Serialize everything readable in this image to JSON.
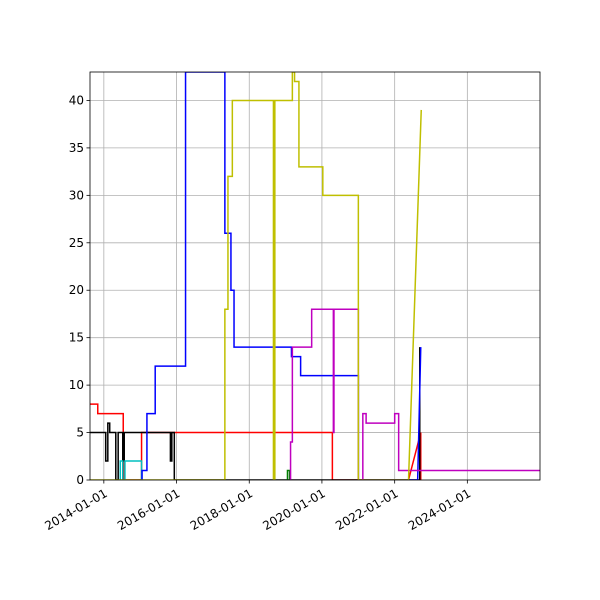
{
  "chart_data": {
    "type": "line",
    "title": "",
    "xlabel": "",
    "ylabel": "",
    "xlim": [
      "2013-08-15",
      "2025-12-31"
    ],
    "ylim": [
      0,
      43
    ],
    "grid": true,
    "x_ticks": [
      "2014-01-01",
      "2016-01-01",
      "2018-01-01",
      "2020-01-01",
      "2022-01-01",
      "2024-01-01"
    ],
    "y_ticks": [
      0,
      5,
      10,
      15,
      20,
      25,
      30,
      35,
      40
    ],
    "series": [
      {
        "color": "#ff0000",
        "points": [
          [
            "2013-08-15",
            8
          ],
          [
            "2013-11-01",
            8
          ],
          [
            "2013-11-01",
            7
          ],
          [
            "2014-07-15",
            7
          ],
          [
            "2014-07-15",
            2
          ],
          [
            "2014-07-25",
            2
          ],
          [
            "2014-07-25",
            0
          ],
          [
            "2015-01-15",
            0
          ],
          [
            "2015-01-15",
            5
          ],
          [
            "2020-04-15",
            5
          ],
          [
            "2020-04-15",
            0
          ],
          [
            "2022-05-20",
            0
          ],
          [
            "2022-09-20",
            5
          ],
          [
            "2022-09-20",
            0
          ]
        ]
      },
      {
        "color": "#000000",
        "points": [
          [
            "2013-08-15",
            5
          ],
          [
            "2014-01-20",
            5
          ],
          [
            "2014-01-20",
            2
          ],
          [
            "2014-02-10",
            2
          ],
          [
            "2014-02-10",
            6
          ],
          [
            "2014-03-01",
            6
          ],
          [
            "2014-03-01",
            5
          ],
          [
            "2014-05-01",
            5
          ],
          [
            "2014-05-01",
            0
          ],
          [
            "2014-05-25",
            0
          ],
          [
            "2014-05-25",
            5
          ],
          [
            "2014-07-10",
            5
          ],
          [
            "2014-07-10",
            2
          ],
          [
            "2014-07-25",
            2
          ],
          [
            "2014-07-25",
            5
          ],
          [
            "2015-11-01",
            5
          ],
          [
            "2015-11-01",
            2
          ],
          [
            "2015-11-15",
            2
          ],
          [
            "2015-11-15",
            5
          ],
          [
            "2015-12-10",
            5
          ],
          [
            "2015-12-10",
            0
          ],
          [
            "2022-09-10",
            0
          ],
          [
            "2022-09-10",
            14
          ]
        ]
      },
      {
        "color": "#00bfbf",
        "points": [
          [
            "2014-06-15",
            0
          ],
          [
            "2014-06-15",
            2
          ],
          [
            "2014-07-10",
            2
          ],
          [
            "2014-07-10",
            0
          ],
          [
            "2014-08-01",
            0
          ],
          [
            "2014-08-01",
            2
          ],
          [
            "2015-01-15",
            2
          ],
          [
            "2015-01-15",
            0
          ]
        ]
      },
      {
        "color": "#0000ff",
        "points": [
          [
            "2015-01-20",
            0
          ],
          [
            "2015-01-20",
            1
          ],
          [
            "2015-03-10",
            1
          ],
          [
            "2015-03-10",
            7
          ],
          [
            "2015-06-01",
            7
          ],
          [
            "2015-06-01",
            12
          ],
          [
            "2016-04-01",
            12
          ],
          [
            "2016-04-01",
            43
          ],
          [
            "2017-05-01",
            43
          ],
          [
            "2017-05-01",
            26
          ],
          [
            "2017-07-01",
            26
          ],
          [
            "2017-07-01",
            20
          ],
          [
            "2017-08-01",
            20
          ],
          [
            "2017-08-01",
            14
          ],
          [
            "2019-03-01",
            14
          ],
          [
            "2019-03-01",
            13
          ],
          [
            "2019-06-01",
            13
          ],
          [
            "2019-06-01",
            11
          ],
          [
            "2021-01-01",
            11
          ],
          [
            "2021-01-01",
            0
          ],
          [
            "2022-08-20",
            0
          ],
          [
            "2022-09-20",
            14
          ]
        ]
      },
      {
        "color": "#007f00",
        "points": [
          [
            "2019-01-20",
            0
          ],
          [
            "2019-01-20",
            1
          ],
          [
            "2019-02-10",
            1
          ],
          [
            "2019-02-10",
            0
          ]
        ]
      },
      {
        "color": "#bf00bf",
        "points": [
          [
            "2019-02-20",
            0
          ],
          [
            "2019-02-20",
            4
          ],
          [
            "2019-03-10",
            4
          ],
          [
            "2019-03-10",
            14
          ],
          [
            "2019-09-20",
            14
          ],
          [
            "2019-09-20",
            18
          ],
          [
            "2020-04-25",
            18
          ],
          [
            "2020-04-25",
            5
          ],
          [
            "2020-05-01",
            5
          ],
          [
            "2020-05-01",
            18
          ],
          [
            "2021-01-01",
            18
          ],
          [
            "2021-01-01",
            0
          ],
          [
            "2021-02-15",
            0
          ],
          [
            "2021-02-15",
            7
          ],
          [
            "2021-03-20",
            7
          ],
          [
            "2021-03-20",
            6
          ],
          [
            "2022-01-01",
            6
          ],
          [
            "2022-01-01",
            7
          ],
          [
            "2022-02-10",
            7
          ],
          [
            "2022-02-10",
            1
          ],
          [
            "2025-12-31",
            1
          ]
        ]
      },
      {
        "color": "#bfbf00",
        "points": [
          [
            "2013-08-15",
            0
          ],
          [
            "2017-05-01",
            0
          ],
          [
            "2017-05-01",
            18
          ],
          [
            "2017-06-01",
            18
          ],
          [
            "2017-06-01",
            32
          ],
          [
            "2017-07-15",
            32
          ],
          [
            "2017-07-15",
            40
          ],
          [
            "2018-09-01",
            40
          ],
          [
            "2018-09-01",
            0
          ],
          [
            "2018-09-15",
            0
          ],
          [
            "2018-09-15",
            40
          ],
          [
            "2019-03-10",
            40
          ],
          [
            "2019-03-10",
            43
          ],
          [
            "2019-04-01",
            43
          ],
          [
            "2019-04-01",
            42
          ],
          [
            "2019-05-15",
            42
          ],
          [
            "2019-05-15",
            33
          ],
          [
            "2020-01-10",
            33
          ],
          [
            "2020-01-10",
            30
          ],
          [
            "2021-01-01",
            30
          ],
          [
            "2021-01-01",
            0
          ],
          [
            "2022-05-20",
            0
          ],
          [
            "2022-09-25",
            39
          ]
        ]
      }
    ]
  }
}
